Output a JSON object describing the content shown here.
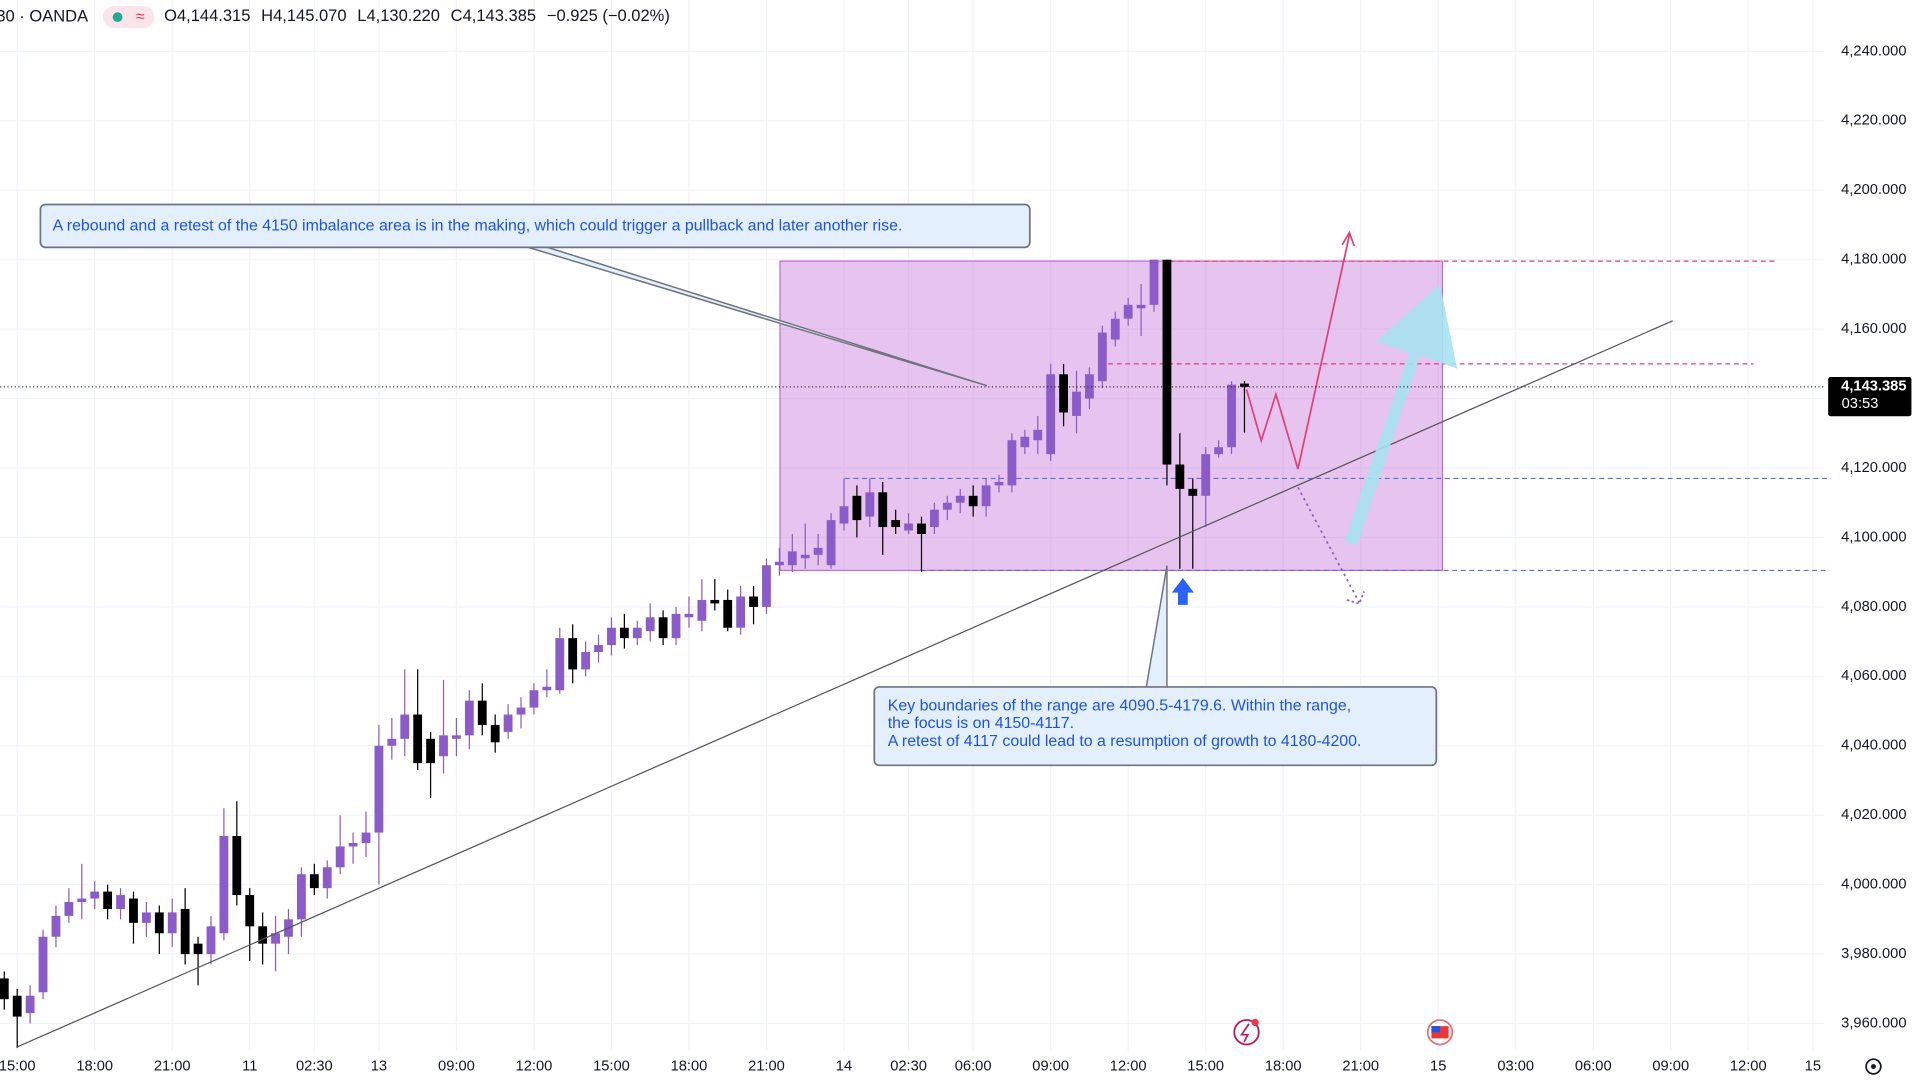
{
  "header": {
    "symbol": "30 · OANDA",
    "ohlc": [
      {
        "label": "O",
        "value": "4,144.315"
      },
      {
        "label": "H",
        "value": "4,145.070"
      },
      {
        "label": "L",
        "value": "4,130.220"
      },
      {
        "label": "C",
        "value": "4,143.385"
      }
    ],
    "change": "−0.925 (−0.02%)"
  },
  "chart_data": {
    "type": "candlestick",
    "categories": [
      null,
      "15:00",
      null,
      null,
      null,
      null,
      null,
      "18:00",
      null,
      null,
      null,
      null,
      null,
      "21:00",
      null,
      null,
      null,
      null,
      null,
      "11",
      null,
      null,
      null,
      null,
      "02:30",
      null,
      null,
      null,
      null,
      "13",
      null,
      null,
      null,
      null,
      null,
      "09:00",
      null,
      null,
      null,
      null,
      null,
      "12:00",
      null,
      null,
      null,
      null,
      null,
      "15:00",
      null,
      null,
      null,
      null,
      null,
      "18:00",
      null,
      null,
      null,
      null,
      null,
      "21:00",
      null,
      null,
      null,
      null,
      null,
      "14",
      null,
      null,
      null,
      null,
      "02:30",
      null,
      null,
      null,
      null,
      "06:00",
      null,
      null,
      null,
      null,
      null,
      "09:00",
      null,
      null,
      null,
      null,
      null,
      "12:00",
      null,
      null,
      null,
      null,
      null,
      "15:00",
      null,
      null,
      null,
      null,
      null,
      "18:00",
      null,
      null,
      null,
      null,
      null,
      "21:00",
      null,
      null,
      null,
      null,
      null,
      "15",
      null,
      null,
      null,
      null,
      null,
      "03:00",
      null,
      null,
      null,
      null,
      null,
      "06:00",
      null,
      null,
      null,
      null,
      null,
      "09:00",
      null,
      null,
      null,
      null,
      null,
      "12:00",
      null,
      null,
      null,
      null,
      "15"
    ],
    "open": [
      3973,
      3968,
      3963,
      3969,
      3985,
      3991,
      3995,
      3996,
      3998,
      3993,
      3996,
      3989,
      3992,
      3986,
      3993,
      3983,
      3980,
      3986,
      4014,
      3997,
      3988,
      3983,
      3985,
      3990,
      4003,
      3999,
      4005,
      4011,
      4012,
      4015,
      4040,
      4042,
      4049,
      4042,
      4037,
      4042,
      4043,
      4053,
      4046,
      4044,
      4049,
      4051,
      4056,
      4056,
      4071,
      4062,
      4067,
      4069,
      4074,
      4071,
      4073,
      4077,
      4071,
      4077,
      4076,
      4082,
      4082,
      4074,
      4083,
      4080,
      4092,
      4092,
      4094,
      4095,
      4092,
      4104,
      4112,
      4106,
      4113,
      4105,
      4102,
      4104,
      4103,
      4108,
      4110,
      4112,
      4109,
      4115,
      4115,
      4126,
      4128,
      4124,
      4147,
      4135,
      4140,
      4145,
      4157,
      4163,
      4166,
      4167,
      4180,
      4121,
      4114,
      4112,
      4124,
      4126,
      4144.315,
      null,
      null,
      null,
      null,
      null,
      null,
      null,
      null,
      null,
      null,
      null,
      null,
      null,
      null,
      null,
      null,
      null,
      null,
      null,
      null,
      null,
      null,
      null,
      null,
      null,
      null,
      null,
      null,
      null,
      null,
      null,
      null,
      null,
      null,
      null,
      null,
      null,
      null,
      null,
      null,
      null,
      null,
      null,
      null
    ],
    "high": [
      3975,
      3970,
      3971,
      3987,
      3994,
      3999,
      4006,
      4001,
      4000,
      3999,
      3998,
      3995,
      3994,
      3996,
      3999,
      3985,
      3991,
      4022,
      4024,
      3999,
      3992,
      3991,
      3993,
      4005,
      4006,
      4007,
      4020,
      4015,
      4021,
      4046,
      4048,
      4062,
      4062,
      4044,
      4059,
      4048,
      4056,
      4058,
      4049,
      4052,
      4054,
      4058,
      4062,
      4074,
      4075,
      4070,
      4072,
      4077,
      4078,
      4076,
      4081,
      4079,
      4080,
      4083,
      4088,
      4088,
      4085,
      4086,
      4086,
      4094,
      4097,
      4101,
      4104,
      4101,
      4107,
      4117,
      4115,
      4117,
      4116,
      4108,
      4107,
      4106,
      4110,
      4112,
      4114,
      4115,
      4117,
      4118,
      4130,
      4131,
      4135,
      4150,
      4150,
      4148,
      4149,
      4161,
      4165,
      4169,
      4173,
      4180,
      4180,
      4130,
      4117,
      4126,
      4128,
      4145,
      4145.07,
      null,
      null,
      null,
      null,
      null,
      null,
      null,
      null,
      null,
      null,
      null,
      null,
      null,
      null,
      null,
      null,
      null,
      null,
      null,
      null,
      null,
      null,
      null,
      null,
      null,
      null,
      null,
      null,
      null,
      null,
      null,
      null,
      null,
      null,
      null,
      null,
      null,
      null,
      null,
      null,
      null,
      null,
      null,
      null
    ],
    "low": [
      3964,
      3953,
      3960,
      3967,
      3982,
      3989,
      3990,
      3993,
      3990,
      3990,
      3983,
      3985,
      3980,
      3982,
      3977,
      3971,
      3977,
      3984,
      3994,
      3978,
      3977,
      3975,
      3980,
      3985,
      3997,
      3996,
      4003,
      4006,
      4008,
      4000,
      4036,
      4037,
      4033,
      4025,
      4032,
      4037,
      4039,
      4043,
      4038,
      4042,
      4045,
      4049,
      4054,
      4055,
      4058,
      4060,
      4064,
      4066,
      4068,
      4069,
      4070,
      4069,
      4069,
      4074,
      4073,
      4079,
      4073,
      4072,
      4075,
      4078,
      4089,
      4090,
      4091,
      4092,
      4091,
      4102,
      4100,
      4103,
      4095,
      4101,
      4101,
      4090,
      4101,
      4105,
      4107,
      4106,
      4106,
      4113,
      4113,
      4124,
      4124,
      4122,
      4132,
      4130,
      4137,
      4143,
      4155,
      4161,
      4158,
      4165,
      4115,
      4091,
      4091,
      4103,
      4123,
      4124,
      4130.22,
      null,
      null,
      null,
      null,
      null,
      null,
      null,
      null,
      null,
      null,
      null,
      null,
      null,
      null,
      null,
      null,
      null,
      null,
      null,
      null,
      null,
      null,
      null,
      null,
      null,
      null,
      null,
      null,
      null,
      null,
      null,
      null,
      null,
      null,
      null,
      null,
      null,
      null,
      null,
      null,
      null,
      null,
      null,
      null
    ],
    "close": [
      3967,
      3962,
      3968,
      3985,
      3991,
      3995,
      3996,
      3998,
      3993,
      3997,
      3989,
      3992,
      3986,
      3992,
      3980,
      3980,
      3988,
      4014,
      3997,
      3988,
      3983,
      3986,
      3990,
      4003,
      3999,
      4005,
      4011,
      4012,
      4015,
      4040,
      4042,
      4049,
      4035,
      4035,
      4043,
      4043,
      4053,
      4046,
      4041,
      4049,
      4051,
      4056,
      4057,
      4071,
      4062,
      4067,
      4069,
      4074,
      4071,
      4074,
      4077,
      4071,
      4078,
      4078,
      4082,
      4081,
      4074,
      4083,
      4080,
      4092,
      4093,
      4096,
      4095,
      4097,
      4105,
      4109,
      4105,
      4113,
      4103,
      4103,
      4104,
      4101,
      4108,
      4110,
      4112,
      4109,
      4115,
      4116,
      4128,
      4129,
      4131,
      4147,
      4136,
      4142,
      4147,
      4159,
      4163,
      4167,
      4167,
      4180,
      4121,
      4114,
      4112,
      4124,
      4126,
      4144,
      4143.385,
      null,
      null,
      null,
      null,
      null,
      null,
      null,
      null,
      null,
      null,
      null,
      null,
      null,
      null,
      null,
      null,
      null,
      null,
      null,
      null,
      null,
      null,
      null,
      null,
      null,
      null,
      null,
      null,
      null,
      null,
      null,
      null,
      null,
      null,
      null,
      null,
      null,
      null,
      null,
      null,
      null,
      null,
      null,
      null
    ],
    "up_color": "#8b5cc9",
    "down_color": "#000000",
    "ylim": [
      3952.2,
      4254.8
    ],
    "yticks": [
      {
        "value": 3960,
        "label": "3,960.000"
      },
      {
        "value": 3980,
        "label": "3,980.000"
      },
      {
        "value": 4000,
        "label": "4,000.000"
      },
      {
        "value": 4020,
        "label": "4,020.000"
      },
      {
        "value": 4040,
        "label": "4,040.000"
      },
      {
        "value": 4060,
        "label": "4,060.000"
      },
      {
        "value": 4080,
        "label": "4,080.000"
      },
      {
        "value": 4100,
        "label": "4,100.000"
      },
      {
        "value": 4120,
        "label": "4,120.000"
      },
      {
        "value": 4140,
        "label": "4,140.000"
      },
      {
        "value": 4160,
        "label": "4,160.000"
      },
      {
        "value": 4180,
        "label": "4,180.000"
      },
      {
        "value": 4200,
        "label": "4,200.000"
      },
      {
        "value": 4220,
        "label": "4,220.000"
      },
      {
        "value": 4240,
        "label": "4,240.000"
      }
    ],
    "grid": true,
    "price_tag": {
      "value": 4143.385,
      "label": "4,143.385",
      "countdown": "03:53"
    },
    "levels": [
      4179.6,
      4150,
      4117,
      4090.5
    ],
    "level_colors": [
      "#e0407a",
      "#e0407a",
      "#5b6ee1",
      "#5b6ee1"
    ],
    "range_color": "#c46ad6",
    "callouts": [
      {
        "lines": [
          "A rebound and a retest of the 4150 imbalance area is in the making, which could trigger a pullback and later another rise."
        ]
      },
      {
        "lines": [
          "Key boundaries of the range are 4090.5-4179.6. Within the range,",
          "the focus is on 4150-4117.",
          "A retest of 4117 could lead to a resumption of growth to 4180-4200."
        ]
      }
    ]
  }
}
